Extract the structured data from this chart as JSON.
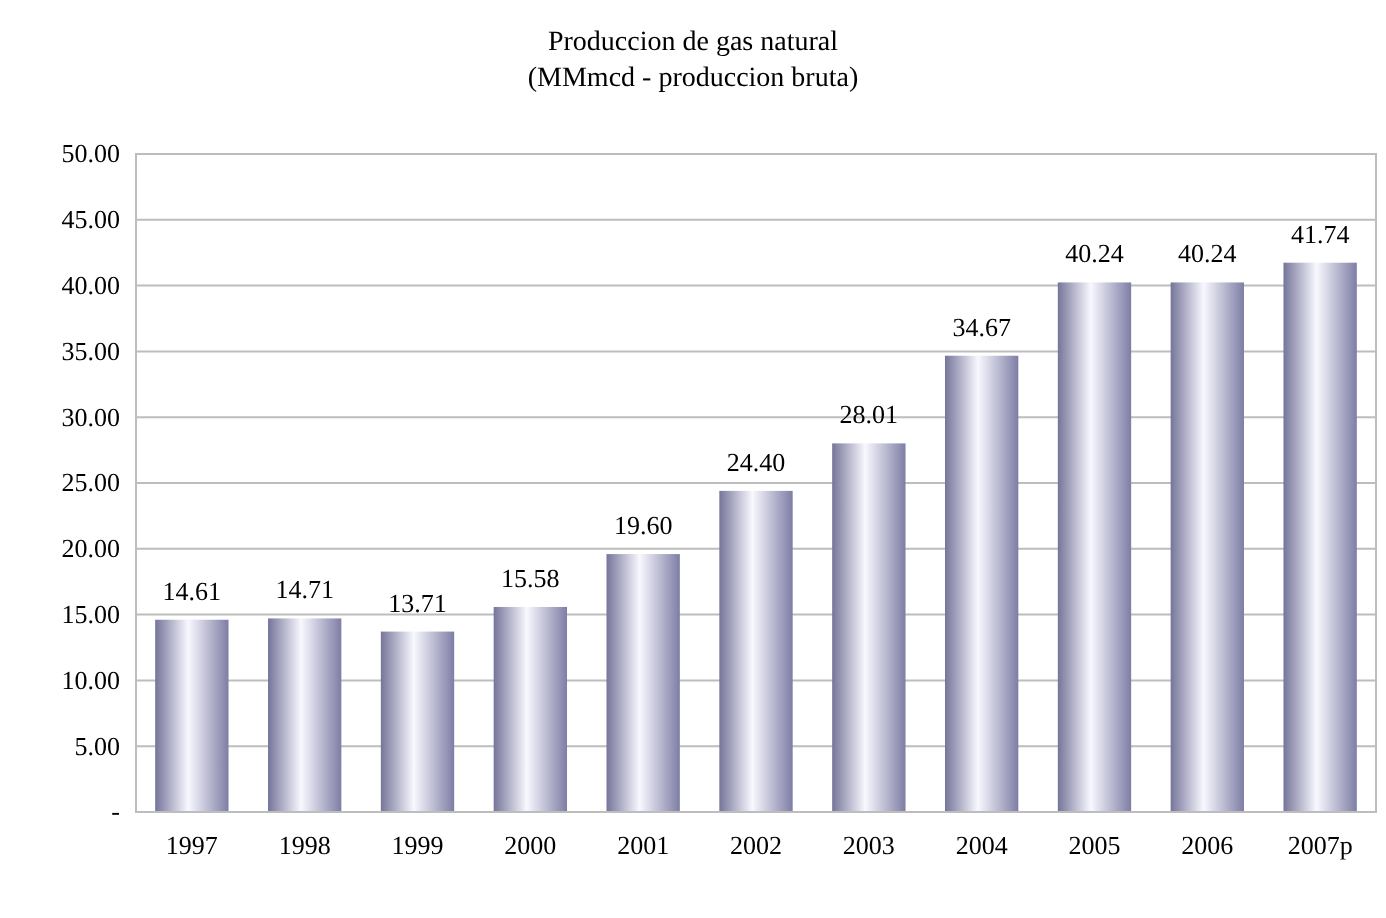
{
  "chart_data": {
    "type": "bar",
    "title": "Produccion de gas natural",
    "subtitle": "(MMmcd - produccion bruta)",
    "categories": [
      "1997",
      "1998",
      "1999",
      "2000",
      "2001",
      "2002",
      "2003",
      "2004",
      "2005",
      "2006",
      "2007p"
    ],
    "values": [
      14.61,
      14.71,
      13.71,
      15.58,
      19.6,
      24.4,
      28.01,
      34.67,
      40.24,
      40.24,
      41.74
    ],
    "value_labels": [
      "14.61",
      "14.71",
      "13.71",
      "15.58",
      "19.60",
      "24.40",
      "28.01",
      "34.67",
      "40.24",
      "40.24",
      "41.74"
    ],
    "color": "#b4b4ec",
    "ylim": [
      0,
      50
    ],
    "yticks": [
      {
        "value": 0,
        "label": "-"
      },
      {
        "value": 5,
        "label": "5.00"
      },
      {
        "value": 10,
        "label": "10.00"
      },
      {
        "value": 15,
        "label": "15.00"
      },
      {
        "value": 20,
        "label": "20.00"
      },
      {
        "value": 25,
        "label": "25.00"
      },
      {
        "value": 30,
        "label": "30.00"
      },
      {
        "value": 35,
        "label": "35.00"
      },
      {
        "value": 40,
        "label": "40.00"
      },
      {
        "value": 45,
        "label": "45.00"
      },
      {
        "value": 50,
        "label": "50.00"
      }
    ],
    "grid": "y"
  }
}
